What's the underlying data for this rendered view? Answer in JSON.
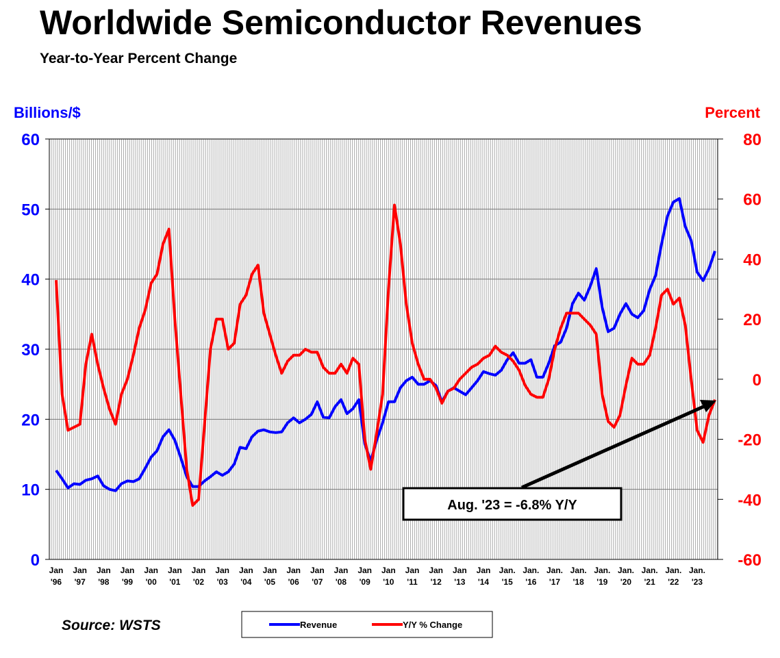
{
  "chart_data": {
    "type": "line",
    "title": "Worldwide Semiconductor Revenues",
    "subtitle": "Year-to-Year Percent Change",
    "y_label": "Billions/$",
    "y2_label": "Percent",
    "source": "Source: WSTS",
    "annotation": "Aug. '23 = -6.8% Y/Y",
    "ylim": [
      0,
      60
    ],
    "yticks": [
      0,
      10,
      20,
      30,
      40,
      50,
      60
    ],
    "y2lim": [
      -60,
      80
    ],
    "y2ticks": [
      -60,
      -40,
      -20,
      0,
      20,
      40,
      60,
      80
    ],
    "grid": true,
    "categories": [
      "Jan\n'96",
      null,
      null,
      null,
      "Jan\n'97",
      null,
      null,
      null,
      "Jan\n'98",
      null,
      null,
      null,
      "Jan\n'99",
      null,
      null,
      null,
      "Jan\n'00",
      null,
      null,
      null,
      "Jan\n'01",
      null,
      null,
      null,
      "Jan\n'02",
      null,
      null,
      null,
      "Jan\n'03",
      null,
      null,
      null,
      "Jan\n'04",
      null,
      null,
      null,
      "Jan\n'05",
      null,
      null,
      null,
      "Jan\n'06",
      null,
      null,
      null,
      "Jan\n'07",
      null,
      null,
      null,
      "Jan\n'08",
      null,
      null,
      null,
      "Jan\n'09",
      null,
      null,
      null,
      "Jan\n'10",
      null,
      null,
      null,
      "Jan\n'11",
      null,
      null,
      null,
      "Jan\n'12",
      null,
      null,
      null,
      "Jan\n'13",
      null,
      null,
      null,
      "Jan\n'14",
      null,
      null,
      null,
      "Jan.\n'15",
      null,
      null,
      null,
      "Jan.\n'16",
      null,
      null,
      null,
      "Jan.\n'17",
      null,
      null,
      null,
      "Jan.\n'18",
      null,
      null,
      null,
      "Jan.\n'19",
      null,
      null,
      null,
      "Jan.\n'20",
      null,
      null,
      null,
      "Jan.\n'21",
      null,
      null,
      null,
      "Jan.\n'22",
      null,
      null,
      null,
      "Jan.\n'23",
      null,
      null,
      null
    ],
    "series": [
      {
        "name": "Revenue",
        "color": "#0000ff",
        "values": [
          12.7,
          11.5,
          10.2,
          10.8,
          10.7,
          11.3,
          11.5,
          11.9,
          10.5,
          10.0,
          9.8,
          10.8,
          11.2,
          11.1,
          11.5,
          13.0,
          14.6,
          15.5,
          17.5,
          18.5,
          17.0,
          14.5,
          11.8,
          10.4,
          10.4,
          11.2,
          11.8,
          12.5,
          12.0,
          12.5,
          13.6,
          16.0,
          15.8,
          17.5,
          18.3,
          18.5,
          18.2,
          18.1,
          18.2,
          19.5,
          20.2,
          19.5,
          20.0,
          20.7,
          22.5,
          20.3,
          20.2,
          21.8,
          22.8,
          20.8,
          21.5,
          22.8,
          16.5,
          14.0,
          17.0,
          19.5,
          22.5,
          22.5,
          24.5,
          25.5,
          26.0,
          25.0,
          25.0,
          25.5,
          24.8,
          22.5,
          24.0,
          24.5,
          24.0,
          23.5,
          24.5,
          25.5,
          26.8,
          26.5,
          26.3,
          27.0,
          28.5,
          29.5,
          28.0,
          28.0,
          28.5,
          26.0,
          26.0,
          28.0,
          30.5,
          31.0,
          33.0,
          36.5,
          38.0,
          37.0,
          39.0,
          41.5,
          36.0,
          32.5,
          33.0,
          35.0,
          36.5,
          35.0,
          34.5,
          35.5,
          38.5,
          40.5,
          45.0,
          49.0,
          51.0,
          51.5,
          47.5,
          45.5,
          41.0,
          39.8,
          41.5,
          44.0
        ]
      },
      {
        "name": "Y/Y % Change",
        "color": "#ff0000",
        "axis": "y2",
        "values": [
          33,
          -5,
          -17,
          -16,
          -15,
          5,
          15,
          5,
          -3,
          -10,
          -15,
          -5,
          0,
          8,
          17,
          23,
          32,
          35,
          45,
          50,
          20,
          -5,
          -30,
          -42,
          -40,
          -15,
          10,
          20,
          20,
          10,
          12,
          25,
          28,
          35,
          38,
          22,
          15,
          8,
          2,
          6,
          8,
          8,
          10,
          9,
          9,
          4,
          2,
          2,
          5,
          2,
          7,
          5,
          -20,
          -30,
          -18,
          -5,
          30,
          58,
          45,
          25,
          12,
          5,
          0,
          0,
          -3,
          -8,
          -4,
          -3,
          0,
          2,
          4,
          5,
          7,
          8,
          11,
          9,
          8,
          6,
          3,
          -2,
          -5,
          -6,
          -6,
          0,
          10,
          17,
          22,
          22,
          22,
          20,
          18,
          15,
          -5,
          -14,
          -16,
          -12,
          -2,
          7,
          5,
          5,
          8,
          17,
          28,
          30,
          25,
          27,
          18,
          0,
          -17,
          -21,
          -12,
          -6.8
        ]
      }
    ]
  }
}
